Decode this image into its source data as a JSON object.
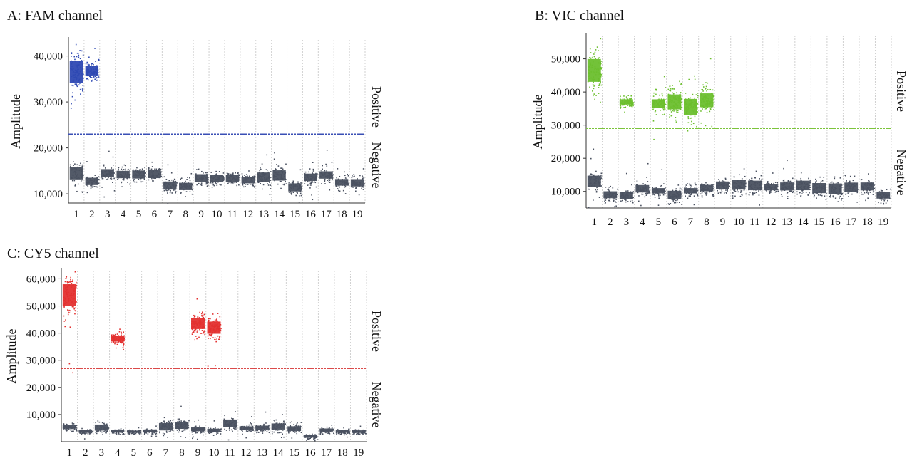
{
  "chart_data": [
    {
      "type": "scatter",
      "title": "A: FAM channel",
      "ylabel": "Amplitude",
      "xlabel": "",
      "categories": [
        "1",
        "2",
        "3",
        "4",
        "5",
        "6",
        "7",
        "8",
        "9",
        "10",
        "11",
        "12",
        "13",
        "14",
        "15",
        "16",
        "17",
        "18",
        "19"
      ],
      "ylim": [
        8000,
        43500
      ],
      "yticks": [
        10000,
        20000,
        30000,
        40000
      ],
      "ytick_labels": [
        "10,000",
        "20,000",
        "30,000",
        "40,000"
      ],
      "threshold": 23000,
      "threshold_color": "#3a4fb5",
      "positive_color": "#2e49b3",
      "negative_color": "#4a5160",
      "side_labels": {
        "positive": "Positive",
        "negative": "Negative"
      },
      "negative_clusters": [
        {
          "well": 1,
          "center": 14500,
          "spread": 1700
        },
        {
          "well": 2,
          "center": 12700,
          "spread": 1000
        },
        {
          "well": 3,
          "center": 14500,
          "spread": 1100
        },
        {
          "well": 4,
          "center": 14200,
          "spread": 1000
        },
        {
          "well": 5,
          "center": 14200,
          "spread": 1100
        },
        {
          "well": 6,
          "center": 14300,
          "spread": 1100
        },
        {
          "well": 7,
          "center": 11800,
          "spread": 1100
        },
        {
          "well": 8,
          "center": 11600,
          "spread": 1000
        },
        {
          "well": 9,
          "center": 13400,
          "spread": 1100
        },
        {
          "well": 10,
          "center": 13400,
          "spread": 1000
        },
        {
          "well": 11,
          "center": 13300,
          "spread": 1000
        },
        {
          "well": 12,
          "center": 13000,
          "spread": 900
        },
        {
          "well": 13,
          "center": 13600,
          "spread": 1300
        },
        {
          "well": 14,
          "center": 14000,
          "spread": 1400
        },
        {
          "well": 15,
          "center": 11400,
          "spread": 1100
        },
        {
          "well": 16,
          "center": 13600,
          "spread": 1000
        },
        {
          "well": 17,
          "center": 14100,
          "spread": 1000
        },
        {
          "well": 18,
          "center": 12500,
          "spread": 900
        },
        {
          "well": 19,
          "center": 12400,
          "spread": 1000
        }
      ],
      "positive_clusters": [
        {
          "well": 1,
          "center": 36500,
          "spread": 3000
        },
        {
          "well": 2,
          "center": 36800,
          "spread": 1300
        }
      ]
    },
    {
      "type": "scatter",
      "title": "B: VIC channel",
      "ylabel": "Amplitude",
      "xlabel": "",
      "categories": [
        "1",
        "2",
        "3",
        "4",
        "5",
        "6",
        "7",
        "8",
        "9",
        "10",
        "11",
        "12",
        "13",
        "14",
        "15",
        "16",
        "17",
        "18",
        "19"
      ],
      "ylim": [
        5000,
        57000
      ],
      "yticks": [
        10000,
        20000,
        30000,
        40000,
        50000
      ],
      "ytick_labels": [
        "10,000",
        "20,000",
        "30,000",
        "40,000",
        "50,000"
      ],
      "threshold": 29000,
      "threshold_color": "#7cc43b",
      "positive_color": "#6cbf2e",
      "negative_color": "#4a5160",
      "side_labels": {
        "positive": "Positive",
        "negative": "Negative"
      },
      "negative_clusters": [
        {
          "well": 1,
          "center": 13000,
          "spread": 2200
        },
        {
          "well": 2,
          "center": 9000,
          "spread": 1300
        },
        {
          "well": 3,
          "center": 8800,
          "spread": 1300
        },
        {
          "well": 4,
          "center": 10800,
          "spread": 1400
        },
        {
          "well": 5,
          "center": 10200,
          "spread": 1000
        },
        {
          "well": 6,
          "center": 9000,
          "spread": 1500
        },
        {
          "well": 7,
          "center": 10200,
          "spread": 1000
        },
        {
          "well": 8,
          "center": 11000,
          "spread": 1200
        },
        {
          "well": 9,
          "center": 11800,
          "spread": 1500
        },
        {
          "well": 10,
          "center": 12000,
          "spread": 1800
        },
        {
          "well": 11,
          "center": 11800,
          "spread": 1800
        },
        {
          "well": 12,
          "center": 11300,
          "spread": 1200
        },
        {
          "well": 13,
          "center": 11500,
          "spread": 1500
        },
        {
          "well": 14,
          "center": 11800,
          "spread": 1800
        },
        {
          "well": 15,
          "center": 11000,
          "spread": 1900
        },
        {
          "well": 16,
          "center": 10800,
          "spread": 2000
        },
        {
          "well": 17,
          "center": 11300,
          "spread": 1700
        },
        {
          "well": 18,
          "center": 11500,
          "spread": 1500
        },
        {
          "well": 19,
          "center": 8800,
          "spread": 1200
        }
      ],
      "positive_clusters": [
        {
          "well": 1,
          "center": 46500,
          "spread": 4300
        },
        {
          "well": 3,
          "center": 37000,
          "spread": 1000
        },
        {
          "well": 5,
          "center": 36500,
          "spread": 1600
        },
        {
          "well": 6,
          "center": 37000,
          "spread": 2800
        },
        {
          "well": 7,
          "center": 35500,
          "spread": 3000
        },
        {
          "well": 8,
          "center": 37500,
          "spread": 2600
        }
      ]
    },
    {
      "type": "scatter",
      "title": "C: CY5 channel",
      "ylabel": "Amplitude",
      "xlabel": "",
      "categories": [
        "1",
        "2",
        "3",
        "4",
        "5",
        "6",
        "7",
        "8",
        "9",
        "10",
        "11",
        "12",
        "13",
        "14",
        "15",
        "16",
        "17",
        "18",
        "19"
      ],
      "ylim": [
        0,
        63000
      ],
      "yticks": [
        10000,
        20000,
        30000,
        40000,
        50000,
        60000
      ],
      "ytick_labels": [
        "10,000",
        "20,000",
        "30,000",
        "40,000",
        "50,000",
        "60,000"
      ],
      "threshold": 27000,
      "threshold_color": "#d63030",
      "positive_color": "#e3302f",
      "negative_color": "#4a5160",
      "side_labels": {
        "positive": "Positive",
        "negative": "Negative"
      },
      "negative_clusters": [
        {
          "well": 1,
          "center": 5500,
          "spread": 900
        },
        {
          "well": 2,
          "center": 3800,
          "spread": 500
        },
        {
          "well": 3,
          "center": 5200,
          "spread": 1400
        },
        {
          "well": 4,
          "center": 3900,
          "spread": 600
        },
        {
          "well": 5,
          "center": 3700,
          "spread": 500
        },
        {
          "well": 6,
          "center": 4000,
          "spread": 600
        },
        {
          "well": 7,
          "center": 5500,
          "spread": 1700
        },
        {
          "well": 8,
          "center": 6000,
          "spread": 1600
        },
        {
          "well": 9,
          "center": 4600,
          "spread": 900
        },
        {
          "well": 10,
          "center": 4200,
          "spread": 700
        },
        {
          "well": 11,
          "center": 6800,
          "spread": 1700
        },
        {
          "well": 12,
          "center": 5000,
          "spread": 800
        },
        {
          "well": 13,
          "center": 5200,
          "spread": 900
        },
        {
          "well": 14,
          "center": 5600,
          "spread": 1400
        },
        {
          "well": 15,
          "center": 4800,
          "spread": 1100
        },
        {
          "well": 16,
          "center": 2000,
          "spread": 600
        },
        {
          "well": 17,
          "center": 4300,
          "spread": 700
        },
        {
          "well": 18,
          "center": 3800,
          "spread": 600
        },
        {
          "well": 19,
          "center": 3700,
          "spread": 600
        }
      ],
      "positive_clusters": [
        {
          "well": 1,
          "center": 54000,
          "spread": 5000
        },
        {
          "well": 4,
          "center": 38000,
          "spread": 1400
        },
        {
          "well": 9,
          "center": 43500,
          "spread": 2500
        },
        {
          "well": 10,
          "center": 42000,
          "spread": 2800
        }
      ]
    }
  ]
}
